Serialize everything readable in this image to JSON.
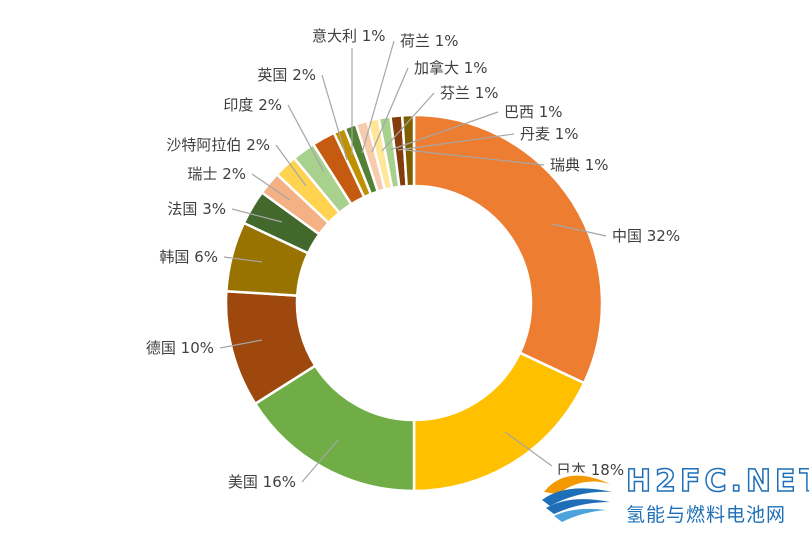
{
  "chart_data": {
    "type": "pie",
    "donut": true,
    "title": "",
    "slices": [
      {
        "name": "中国",
        "value": 32,
        "label": "中国 32%",
        "color": "#ED7D31"
      },
      {
        "name": "日本",
        "value": 18,
        "label": "日本 18%",
        "color": "#FFC000"
      },
      {
        "name": "美国",
        "value": 16,
        "label": "美国 16%",
        "color": "#70AD47"
      },
      {
        "name": "德国",
        "value": 10,
        "label": "德国 10%",
        "color": "#9E480E"
      },
      {
        "name": "韩国",
        "value": 6,
        "label": "韩国 6%",
        "color": "#997300"
      },
      {
        "name": "法国",
        "value": 3,
        "label": "法国 3%",
        "color": "#43682B"
      },
      {
        "name": "瑞士",
        "value": 2,
        "label": "瑞士 2%",
        "color": "#F4B183"
      },
      {
        "name": "沙特阿拉伯",
        "value": 2,
        "label": "沙特阿拉伯 2%",
        "color": "#FFD34F"
      },
      {
        "name": "印度",
        "value": 2,
        "label": "印度 2%",
        "color": "#A9D18E"
      },
      {
        "name": "英国",
        "value": 2,
        "label": "英国 2%",
        "color": "#C55A11"
      },
      {
        "name": "意大利",
        "value": 1,
        "label": "意大利 1%",
        "color": "#BF9000"
      },
      {
        "name": "荷兰",
        "value": 1,
        "label": "荷兰 1%",
        "color": "#548235"
      },
      {
        "name": "加拿大",
        "value": 1,
        "label": "加拿大 1%",
        "color": "#F8CBAD"
      },
      {
        "name": "芬兰",
        "value": 1,
        "label": "芬兰 1%",
        "color": "#FFE699"
      },
      {
        "name": "巴西",
        "value": 1,
        "label": "巴西 1%",
        "color": "#A9D18E"
      },
      {
        "name": "丹麦",
        "value": 1,
        "label": "丹麦 1%",
        "color": "#843C0C"
      },
      {
        "name": "瑞典",
        "value": 1,
        "label": "瑞典 1%",
        "color": "#7F6000"
      }
    ],
    "legend": "none"
  },
  "watermark": {
    "brand": "H2FC.NET",
    "subtitle": "氢能与燃料电池网",
    "brand_color": "#1E6FB8",
    "accent_color": "#F39800"
  }
}
